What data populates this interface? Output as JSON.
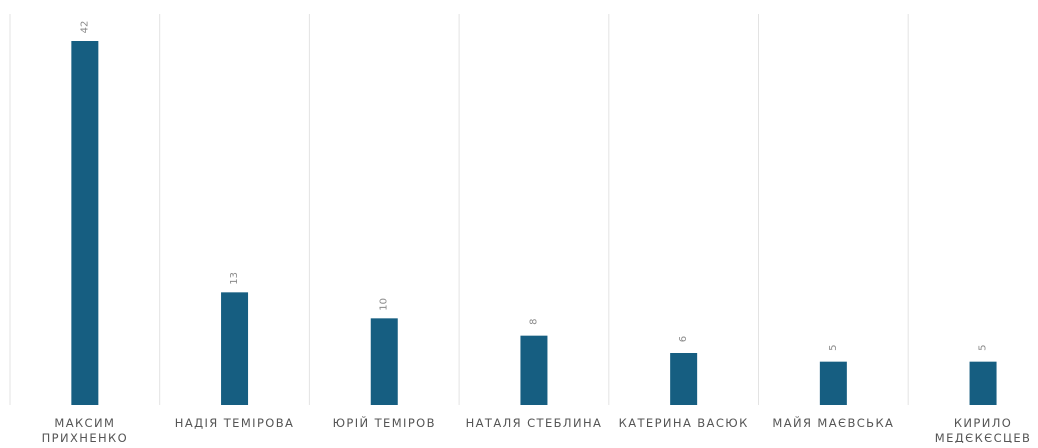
{
  "chart_data": {
    "type": "bar",
    "title": "",
    "xlabel": "",
    "ylabel": "",
    "categories": [
      [
        "МАКСИМ",
        "ПРИХНЕНКО"
      ],
      [
        "НАДІЯ ТЕМІРОВА"
      ],
      [
        "ЮРІЙ ТЕМІРОВ"
      ],
      [
        "НАТАЛЯ СТЕБЛИНА"
      ],
      [
        "КАТЕРИНА ВАСЮК"
      ],
      [
        "МАЙЯ МАЄВСЬКА"
      ],
      [
        "КИРИЛО",
        "МЕДЄКЄСЦЕВ"
      ]
    ],
    "values": [
      42,
      13,
      10,
      8,
      6,
      5,
      5
    ],
    "ylim": [
      0,
      45
    ],
    "grid": "vertical-separators",
    "legend": "none",
    "data_labels": "rotated-above-bars"
  },
  "colors": {
    "bar": "#165e81",
    "grid": "#e3e3e3",
    "category_text": "#555555",
    "value_text": "#8a8a8a",
    "background": "#ffffff"
  }
}
